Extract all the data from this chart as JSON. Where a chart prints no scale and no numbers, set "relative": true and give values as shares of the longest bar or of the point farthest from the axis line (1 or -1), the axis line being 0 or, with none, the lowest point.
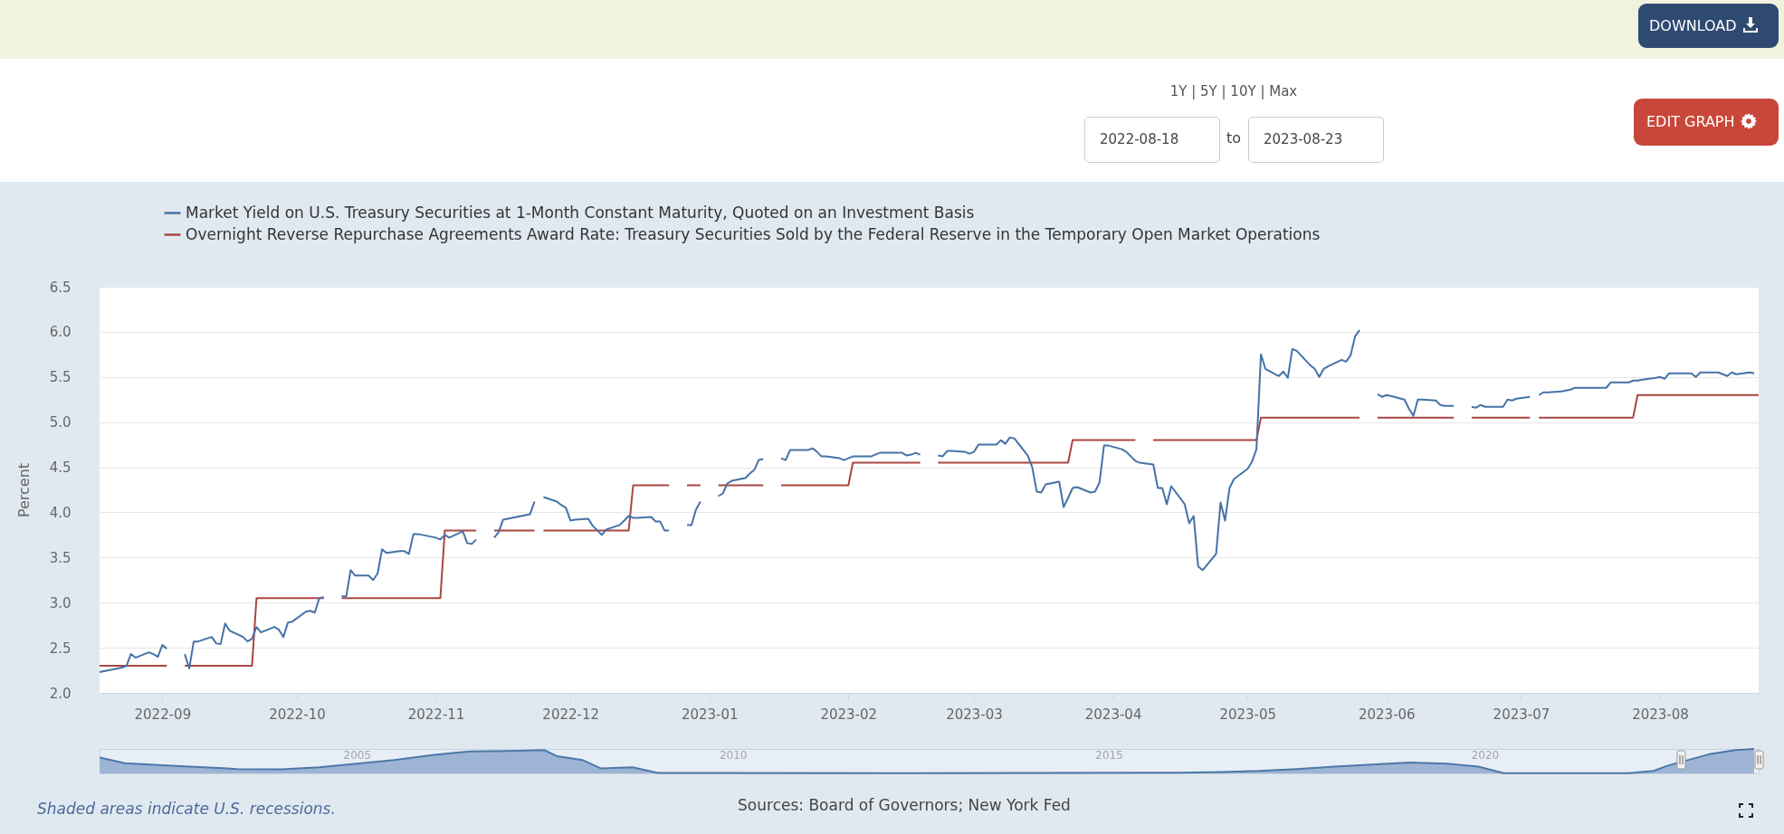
{
  "chart_data": [
    {
      "type": "line",
      "ylabel": "Percent",
      "xlim": [
        "2022-08-18",
        "2023-08-23"
      ],
      "xticks": [
        "2022-09",
        "2022-10",
        "2022-11",
        "2022-12",
        "2023-01",
        "2023-02",
        "2023-03",
        "2023-04",
        "2023-05",
        "2023-06",
        "2023-07",
        "2023-08"
      ],
      "ylim": [
        2,
        6.5
      ],
      "yticks": [
        {
          "value": 2,
          "label": "2.0"
        },
        {
          "value": 2.5,
          "label": "2.5"
        },
        {
          "value": 3,
          "label": "3.0"
        },
        {
          "value": 3.5,
          "label": "3.5"
        },
        {
          "value": 4,
          "label": "4.0"
        },
        {
          "value": 4.5,
          "label": "4.5"
        },
        {
          "value": 5,
          "label": "5.0"
        },
        {
          "value": 5.5,
          "label": "5.5"
        },
        {
          "value": 6,
          "label": "6.0"
        },
        {
          "value": 6.5,
          "label": "6.5"
        }
      ],
      "grid": "y",
      "legend": "top left",
      "annotations": [
        "1Y | 5Y | 10Y | Max",
        "2022-08-18",
        "to",
        "2023-08-23",
        "DOWNLOAD",
        "EDIT GRAPH",
        "Shaded areas indicate U.S. recessions.",
        "Sources: Board of Governors; New York Fed"
      ],
      "series": [
        {
          "name": "Market Yield on U.S. Treasury Securities at 1-Month Constant Maturity, Quoted on an Investment Basis",
          "color": "#4572a7",
          "x": [
            "2022-08-18",
            "2022-08-19",
            "2022-08-22",
            "2022-08-23",
            "2022-08-24",
            "2022-08-25",
            "2022-08-26",
            "2022-08-29",
            "2022-08-30",
            "2022-08-31",
            "2022-09-01",
            "2022-09-02",
            "2022-09-05",
            "2022-09-06",
            "2022-09-07",
            "2022-09-08",
            "2022-09-09",
            "2022-09-12",
            "2022-09-13",
            "2022-09-14",
            "2022-09-15",
            "2022-09-16",
            "2022-09-19",
            "2022-09-20",
            "2022-09-21",
            "2022-09-22",
            "2022-09-23",
            "2022-09-26",
            "2022-09-27",
            "2022-09-28",
            "2022-09-29",
            "2022-09-30",
            "2022-10-03",
            "2022-10-04",
            "2022-10-05",
            "2022-10-06",
            "2022-10-07",
            "2022-10-10",
            "2022-10-11",
            "2022-10-12",
            "2022-10-13",
            "2022-10-14",
            "2022-10-17",
            "2022-10-18",
            "2022-10-19",
            "2022-10-20",
            "2022-10-21",
            "2022-10-24",
            "2022-10-25",
            "2022-10-26",
            "2022-10-27",
            "2022-10-28",
            "2022-10-31",
            "2022-11-01",
            "2022-11-02",
            "2022-11-03",
            "2022-11-04",
            "2022-11-07",
            "2022-11-08",
            "2022-11-09",
            "2022-11-10",
            "2022-11-11",
            "2022-11-14",
            "2022-11-15",
            "2022-11-16",
            "2022-11-17",
            "2022-11-18",
            "2022-11-21",
            "2022-11-22",
            "2022-11-23",
            "2022-11-24",
            "2022-11-25",
            "2022-11-28",
            "2022-11-29",
            "2022-11-30",
            "2022-12-01",
            "2022-12-02",
            "2022-12-05",
            "2022-12-06",
            "2022-12-07",
            "2022-12-08",
            "2022-12-09",
            "2022-12-12",
            "2022-12-13",
            "2022-12-14",
            "2022-12-15",
            "2022-12-16",
            "2022-12-19",
            "2022-12-20",
            "2022-12-21",
            "2022-12-22",
            "2022-12-23",
            "2022-12-26",
            "2022-12-27",
            "2022-12-28",
            "2022-12-29",
            "2022-12-30",
            "2023-01-02",
            "2023-01-03",
            "2023-01-04",
            "2023-01-05",
            "2023-01-06",
            "2023-01-09",
            "2023-01-10",
            "2023-01-11",
            "2023-01-12",
            "2023-01-13",
            "2023-01-16",
            "2023-01-17",
            "2023-01-18",
            "2023-01-19",
            "2023-01-20",
            "2023-01-23",
            "2023-01-24",
            "2023-01-25",
            "2023-01-26",
            "2023-01-27",
            "2023-01-30",
            "2023-01-31",
            "2023-02-01",
            "2023-02-02",
            "2023-02-03",
            "2023-02-06",
            "2023-02-07",
            "2023-02-08",
            "2023-02-09",
            "2023-02-10",
            "2023-02-13",
            "2023-02-14",
            "2023-02-15",
            "2023-02-16",
            "2023-02-17",
            "2023-02-20",
            "2023-02-21",
            "2023-02-22",
            "2023-02-23",
            "2023-02-24",
            "2023-02-27",
            "2023-02-28",
            "2023-03-01",
            "2023-03-02",
            "2023-03-03",
            "2023-03-06",
            "2023-03-07",
            "2023-03-08",
            "2023-03-09",
            "2023-03-10",
            "2023-03-13",
            "2023-03-14",
            "2023-03-15",
            "2023-03-16",
            "2023-03-17",
            "2023-03-20",
            "2023-03-21",
            "2023-03-22",
            "2023-03-23",
            "2023-03-24",
            "2023-03-27",
            "2023-03-28",
            "2023-03-29",
            "2023-03-30",
            "2023-03-31",
            "2023-04-03",
            "2023-04-04",
            "2023-04-05",
            "2023-04-06",
            "2023-04-07",
            "2023-04-10",
            "2023-04-11",
            "2023-04-12",
            "2023-04-13",
            "2023-04-14",
            "2023-04-17",
            "2023-04-18",
            "2023-04-19",
            "2023-04-20",
            "2023-04-21",
            "2023-04-24",
            "2023-04-25",
            "2023-04-26",
            "2023-04-27",
            "2023-04-28",
            "2023-05-01",
            "2023-05-02",
            "2023-05-03",
            "2023-05-04",
            "2023-05-05",
            "2023-05-08",
            "2023-05-09",
            "2023-05-10",
            "2023-05-11",
            "2023-05-12",
            "2023-05-15",
            "2023-05-16",
            "2023-05-17",
            "2023-05-18",
            "2023-05-19",
            "2023-05-22",
            "2023-05-23",
            "2023-05-24",
            "2023-05-25",
            "2023-05-26",
            "2023-05-29",
            "2023-05-30",
            "2023-05-31",
            "2023-06-01",
            "2023-06-02",
            "2023-06-05",
            "2023-06-06",
            "2023-06-07",
            "2023-06-08",
            "2023-06-09",
            "2023-06-12",
            "2023-06-13",
            "2023-06-14",
            "2023-06-15",
            "2023-06-16",
            "2023-06-19",
            "2023-06-20",
            "2023-06-21",
            "2023-06-22",
            "2023-06-23",
            "2023-06-26",
            "2023-06-27",
            "2023-06-28",
            "2023-06-29",
            "2023-06-30",
            "2023-07-03",
            "2023-07-04",
            "2023-07-05",
            "2023-07-06",
            "2023-07-07",
            "2023-07-10",
            "2023-07-11",
            "2023-07-12",
            "2023-07-13",
            "2023-07-14",
            "2023-07-17",
            "2023-07-18",
            "2023-07-19",
            "2023-07-20",
            "2023-07-21",
            "2023-07-24",
            "2023-07-25",
            "2023-07-26",
            "2023-07-27",
            "2023-07-28",
            "2023-07-31",
            "2023-08-01",
            "2023-08-02",
            "2023-08-03",
            "2023-08-04",
            "2023-08-07",
            "2023-08-08",
            "2023-08-09",
            "2023-08-10",
            "2023-08-11",
            "2023-08-14",
            "2023-08-15",
            "2023-08-16",
            "2023-08-17",
            "2023-08-18",
            "2023-08-21",
            "2023-08-22"
          ],
          "values": [
            2.23,
            2.24,
            2.27,
            2.28,
            2.3,
            2.43,
            2.39,
            2.45,
            2.43,
            2.4,
            2.53,
            2.49,
            null,
            2.43,
            2.27,
            2.57,
            2.57,
            2.62,
            2.55,
            2.54,
            2.77,
            2.69,
            2.62,
            2.57,
            2.6,
            2.73,
            2.67,
            2.73,
            2.7,
            2.62,
            2.78,
            2.79,
            2.9,
            2.91,
            2.89,
            3.05,
            3.06,
            null,
            3.07,
            3.07,
            3.36,
            3.3,
            3.3,
            3.25,
            3.32,
            3.59,
            3.55,
            3.57,
            3.57,
            3.54,
            3.76,
            3.76,
            3.73,
            3.72,
            3.7,
            3.75,
            3.72,
            3.79,
            3.66,
            3.65,
            3.7,
            null,
            3.72,
            3.78,
            3.92,
            3.93,
            3.94,
            3.97,
            3.98,
            4.12,
            null,
            4.17,
            4.12,
            4.08,
            4.05,
            3.91,
            3.92,
            3.93,
            3.85,
            3.8,
            3.75,
            3.81,
            3.86,
            3.91,
            3.96,
            3.94,
            3.94,
            3.95,
            3.9,
            3.9,
            3.8,
            3.8,
            null,
            3.86,
            3.86,
            4.03,
            4.12,
            null,
            4.18,
            4.21,
            4.32,
            4.35,
            4.38,
            4.43,
            4.47,
            4.58,
            4.59,
            null,
            4.6,
            4.58,
            4.69,
            4.69,
            4.69,
            4.71,
            4.67,
            4.62,
            4.62,
            4.6,
            4.58,
            4.6,
            4.62,
            4.62,
            4.62,
            4.64,
            4.66,
            4.66,
            4.66,
            4.66,
            4.63,
            4.64,
            4.66,
            4.64,
            null,
            4.63,
            4.62,
            4.68,
            4.68,
            4.67,
            4.65,
            4.67,
            4.75,
            4.75,
            4.75,
            4.8,
            4.76,
            4.83,
            4.82,
            4.63,
            4.5,
            4.23,
            4.22,
            4.31,
            4.34,
            4.06,
            4.16,
            4.27,
            4.28,
            4.22,
            4.23,
            4.33,
            4.74,
            4.74,
            4.7,
            4.67,
            4.62,
            4.57,
            4.55,
            4.53,
            4.27,
            4.27,
            4.09,
            4.29,
            4.09,
            3.88,
            3.96,
            3.4,
            3.36,
            3.54,
            4.11,
            3.91,
            4.27,
            4.37,
            4.48,
            4.56,
            4.7,
            5.75,
            5.59,
            5.51,
            5.56,
            5.49,
            5.81,
            5.79,
            5.63,
            5.59,
            5.5,
            5.59,
            5.62,
            5.69,
            5.67,
            5.74,
            5.95,
            6.02,
            null,
            5.31,
            5.28,
            5.3,
            5.29,
            5.25,
            5.15,
            5.07,
            5.25,
            5.25,
            5.24,
            5.19,
            5.18,
            5.18,
            5.18,
            null,
            5.17,
            5.16,
            5.19,
            5.17,
            5.17,
            5.17,
            5.25,
            5.24,
            5.26,
            5.28,
            null,
            5.3,
            5.33,
            5.33,
            5.34,
            5.35,
            5.36,
            5.38,
            5.38,
            5.38,
            5.38,
            5.38,
            5.38,
            5.44,
            5.44,
            5.44,
            5.46,
            5.46,
            5.47,
            5.49,
            5.5,
            5.48,
            5.54,
            5.54,
            5.54,
            5.54,
            5.5,
            5.55,
            5.55,
            5.55,
            5.53,
            5.51,
            5.55,
            5.53,
            5.55,
            5.54
          ]
        },
        {
          "name": "Overnight Reverse Repurchase Agreements Award Rate: Treasury Securities Sold by the Federal Reserve in the Temporary Open Market Operations",
          "color": "#aa4643",
          "x": [
            "2022-08-18",
            "2022-09-02",
            "2022-09-05",
            "2022-09-06",
            "2022-09-21",
            "2022-09-22",
            "2022-10-07",
            "2022-10-10",
            "2022-10-11",
            "2022-11-02",
            "2022-11-03",
            "2022-11-10",
            "2022-11-11",
            "2022-11-14",
            "2022-11-23",
            "2022-11-24",
            "2022-11-25",
            "2022-12-14",
            "2022-12-15",
            "2022-12-23",
            "2022-12-26",
            "2022-12-27",
            "2022-12-30",
            "2023-01-02",
            "2023-01-03",
            "2023-01-13",
            "2023-01-16",
            "2023-01-17",
            "2023-02-01",
            "2023-02-02",
            "2023-02-17",
            "2023-02-20",
            "2023-02-21",
            "2023-03-22",
            "2023-03-23",
            "2023-04-06",
            "2023-04-07",
            "2023-04-10",
            "2023-05-03",
            "2023-05-04",
            "2023-05-26",
            "2023-05-29",
            "2023-05-30",
            "2023-06-16",
            "2023-06-19",
            "2023-06-20",
            "2023-07-03",
            "2023-07-04",
            "2023-07-05",
            "2023-07-26",
            "2023-07-27",
            "2023-08-23"
          ],
          "values": [
            2.3,
            2.3,
            null,
            2.3,
            2.3,
            3.05,
            3.05,
            null,
            3.05,
            3.05,
            3.8,
            3.8,
            null,
            3.8,
            3.8,
            null,
            3.8,
            3.8,
            4.3,
            4.3,
            null,
            4.3,
            4.3,
            null,
            4.3,
            4.3,
            null,
            4.3,
            4.3,
            4.55,
            4.55,
            null,
            4.55,
            4.55,
            4.8,
            4.8,
            null,
            4.8,
            4.8,
            5.05,
            5.05,
            null,
            5.05,
            5.05,
            null,
            5.05,
            5.05,
            null,
            5.05,
            5.05,
            5.3,
            5.3
          ]
        }
      ]
    },
    {
      "type": "area",
      "relative": true,
      "color": "#91a9cf",
      "xlim": [
        "2001-07-31",
        "2023-08-23"
      ],
      "xticks": [
        "2005",
        "2010",
        "2015",
        "2020"
      ],
      "x": [
        "2001-08",
        "2001-12",
        "2002-06",
        "2003-06",
        "2004-01",
        "2004-07",
        "2005-01",
        "2005-07",
        "2006-01",
        "2006-07",
        "2007-01",
        "2007-07",
        "2007-09",
        "2008-01",
        "2008-04",
        "2008-09",
        "2009-01",
        "2012-01",
        "2015-12",
        "2016-07",
        "2017-01",
        "2017-07",
        "2018-01",
        "2018-07",
        "2019-01",
        "2019-07",
        "2019-12",
        "2020-04",
        "2021-12",
        "2022-04",
        "2022-06",
        "2023-01",
        "2023-05",
        "2023-08"
      ],
      "values": [
        0.65,
        0.42,
        0.33,
        0.18,
        0.17,
        0.25,
        0.4,
        0.55,
        0.75,
        0.9,
        0.92,
        0.95,
        0.7,
        0.55,
        0.2,
        0.25,
        0.02,
        0.01,
        0.03,
        0.06,
        0.1,
        0.18,
        0.28,
        0.36,
        0.44,
        0.4,
        0.28,
        0.01,
        0.01,
        0.1,
        0.3,
        0.8,
        0.95,
        1
      ]
    }
  ]
}
